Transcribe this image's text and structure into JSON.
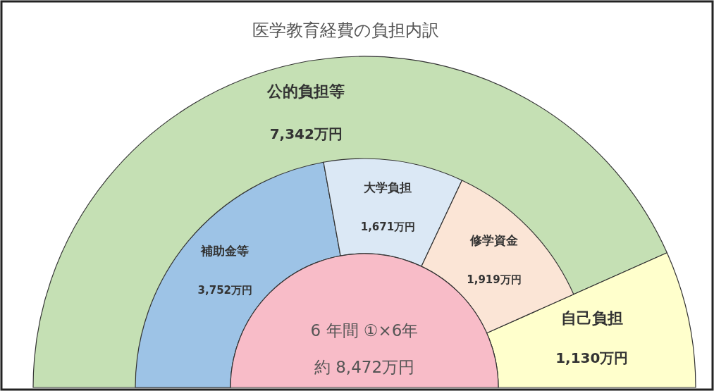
{
  "chart_data": [
    {
      "type": "donut",
      "title": "医学教育経費の負担内訳",
      "categories": [
        "公的負担等",
        "自己負担"
      ],
      "values": [
        7342,
        1130
      ],
      "value_labels": [
        "7,342万円",
        "1,130万円"
      ],
      "colors": [
        "#c5e0b4",
        "#ffffcc"
      ]
    },
    {
      "type": "donut",
      "categories": [
        "補助金等",
        "大学負担",
        "修学資金"
      ],
      "values": [
        3752,
        1671,
        1919
      ],
      "value_labels": [
        "3,752万円",
        "1,671万円",
        "1,919万円"
      ],
      "colors": [
        "#9dc3e6",
        "#dbe8f5",
        "#fbe5d6"
      ]
    },
    {
      "type": "pie",
      "categories": [
        "6 年間 ①×6年"
      ],
      "values": [
        8472
      ],
      "value_labels": [
        "約 8,472万円"
      ],
      "colors": [
        "#f8bcc8"
      ]
    }
  ]
}
